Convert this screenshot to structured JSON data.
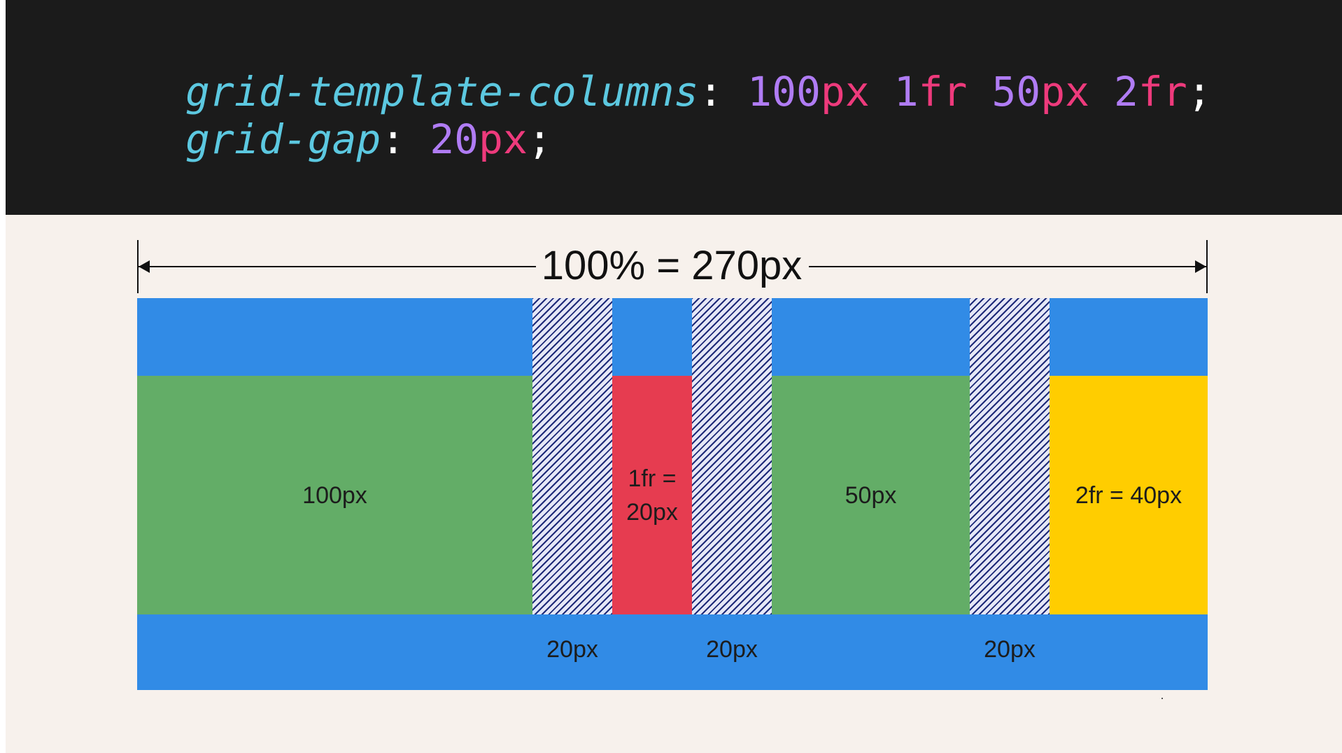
{
  "code": {
    "line1": {
      "property": "grid-template-columns",
      "colon": ":",
      "tokens": [
        {
          "num": "100",
          "unit": "px"
        },
        {
          "num": "1",
          "unit": "fr"
        },
        {
          "num": "50",
          "unit": "px"
        },
        {
          "num": "2",
          "unit": "fr"
        }
      ],
      "semicolon": ";"
    },
    "line2": {
      "property": "grid-gap",
      "colon": ":",
      "tokens": [
        {
          "num": "20",
          "unit": "px"
        }
      ],
      "semicolon": ";"
    }
  },
  "dimension_label": "100% = 270px",
  "columns": [
    {
      "label": "100px"
    },
    {
      "label": "1fr = 20px"
    },
    {
      "label": "50px"
    },
    {
      "label": "2fr = 40px"
    }
  ],
  "gaps": [
    {
      "label": "20px"
    },
    {
      "label": "20px"
    },
    {
      "label": "20px"
    }
  ],
  "colors": {
    "code_background": "#1b1b1b",
    "property": "#5cc8e0",
    "number": "#b07cf4",
    "unit": "#ee3a7c",
    "punctuation": "#ffffff",
    "canvas_background": "#f7f1ec",
    "grid_container": "#318be6",
    "gap_hatch": "#1e2a78",
    "gap_background": "#e6e8f7",
    "column_px": "#63ad67",
    "column_1fr": "#e63c50",
    "column_2fr": "#ffcd00"
  }
}
